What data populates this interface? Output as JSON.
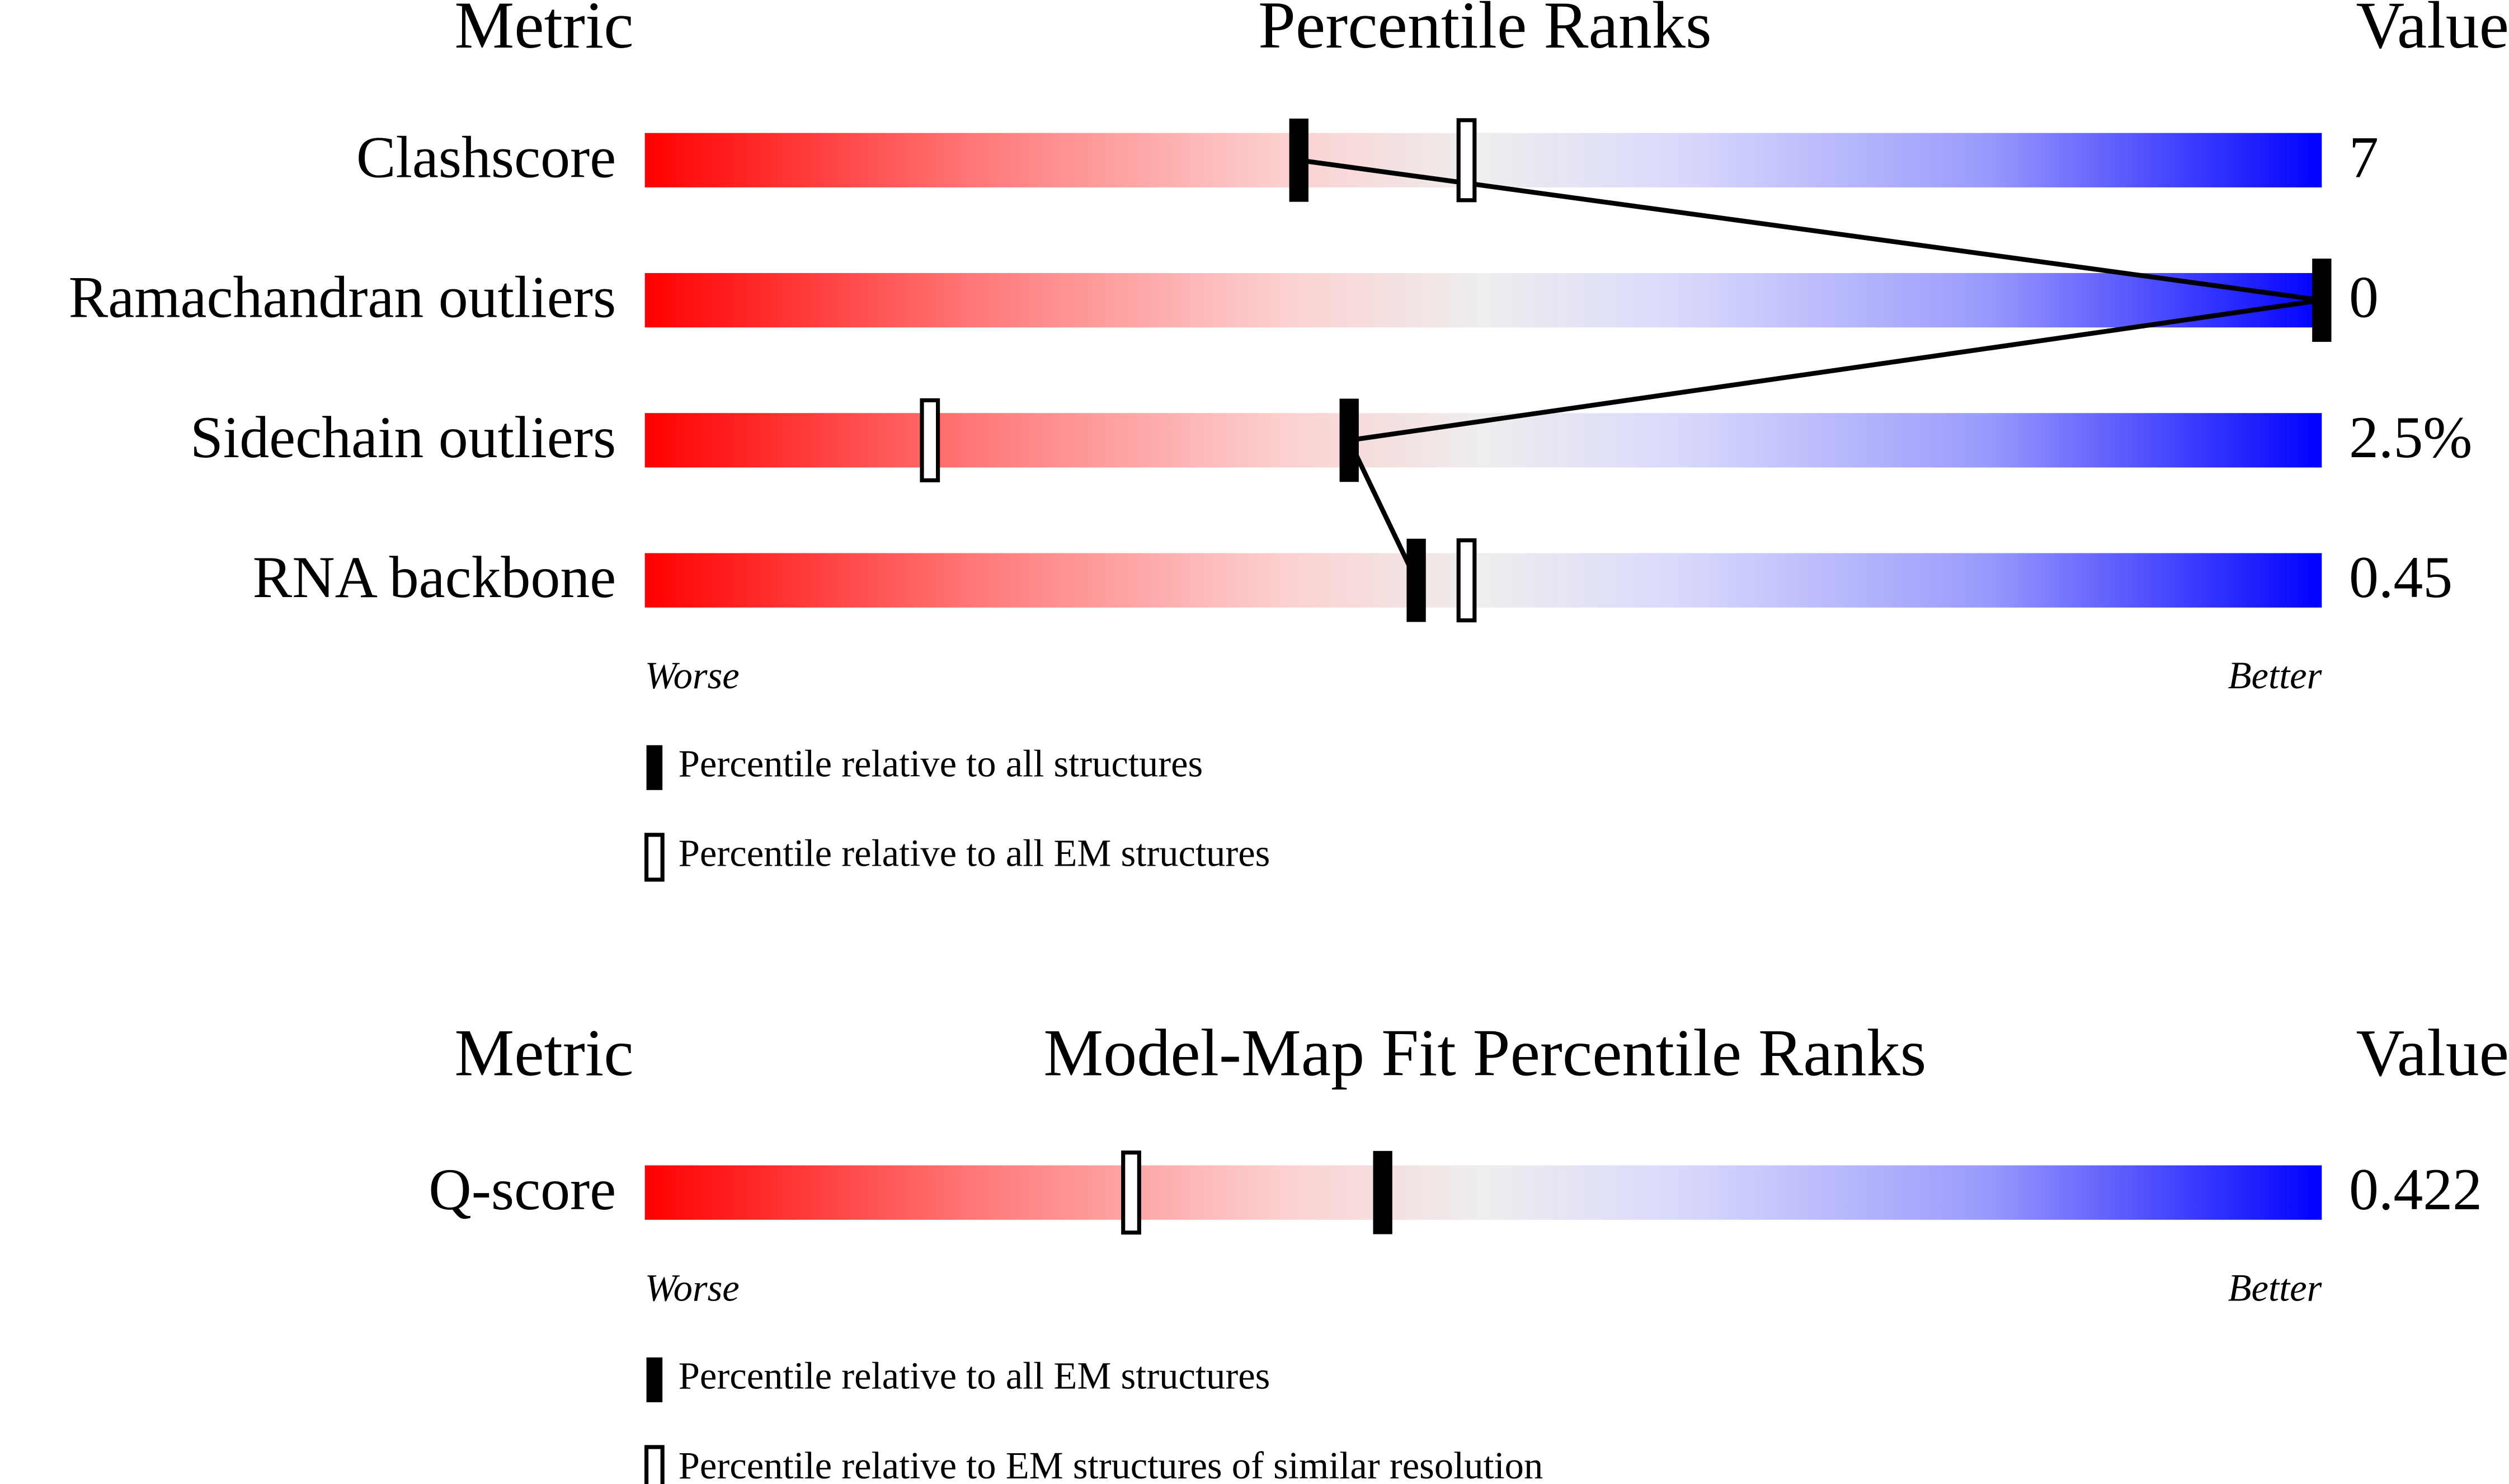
{
  "chart_data": [
    {
      "type": "percentile",
      "headers": [
        "Metric",
        "Percentile Ranks",
        "Value"
      ],
      "categories": [
        "Clashscore",
        "Ramachandran outliers",
        "Sidechain outliers",
        "RNA backbone"
      ],
      "value_labels": [
        "7",
        "0",
        "2.5%",
        "0.45"
      ],
      "xlim": [
        0,
        100
      ],
      "axis_labels": [
        "Worse",
        "Better"
      ],
      "series": [
        {
          "name": "Percentile relative to all structures",
          "style": "filled",
          "color": "#000000",
          "values": [
            39,
            100,
            42,
            46
          ]
        },
        {
          "name": "Percentile relative to all EM structures",
          "style": "open",
          "color": "#000000",
          "values": [
            49,
            null,
            17,
            49
          ]
        }
      ]
    },
    {
      "type": "percentile",
      "headers": [
        "Metric",
        "Model-Map Fit Percentile Ranks",
        "Value"
      ],
      "categories": [
        "Q-score"
      ],
      "value_labels": [
        "0.422"
      ],
      "xlim": [
        0,
        100
      ],
      "axis_labels": [
        "Worse",
        "Better"
      ],
      "series": [
        {
          "name": "Percentile relative to all EM structures",
          "style": "filled",
          "color": "#000000",
          "values": [
            44
          ]
        },
        {
          "name": "Percentile relative to EM structures of similar resolution",
          "style": "open",
          "color": "#000000",
          "values": [
            29
          ]
        }
      ]
    }
  ]
}
